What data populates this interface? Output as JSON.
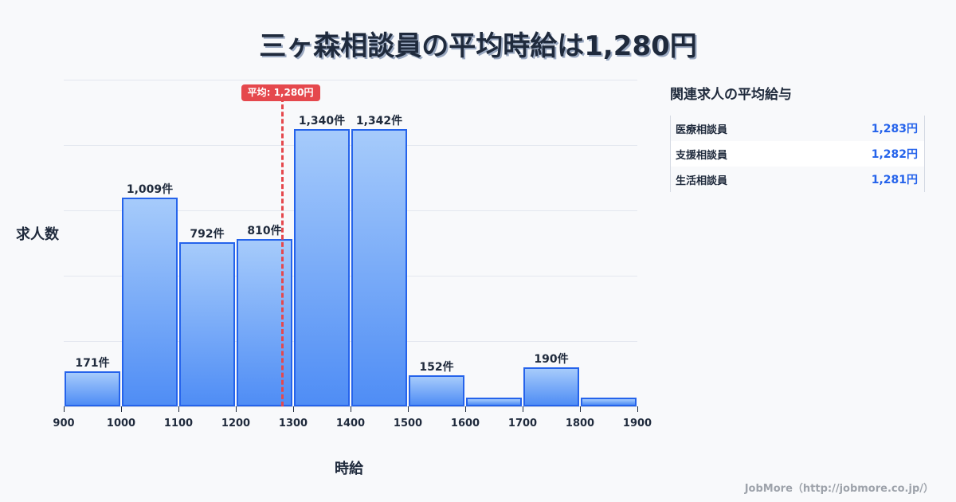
{
  "title": "三ヶ森相談員の平均時給は1,280円",
  "axes": {
    "ylabel": "求人数",
    "xlabel": "時給"
  },
  "mean": {
    "label": "平均: 1,280円",
    "value": 1280,
    "color": "#e5484d"
  },
  "side_panel": {
    "title": "関連求人の平均給与",
    "rows": [
      {
        "name": "医療相談員",
        "value": "1,283円"
      },
      {
        "name": "支援相談員",
        "value": "1,282円"
      },
      {
        "name": "生活相談員",
        "value": "1,281円"
      }
    ]
  },
  "footer": "JobMore（http://jobmore.co.jp/）",
  "colors": {
    "bar_border": "#2563eb",
    "bar_top": "#a6cbfb",
    "bar_bottom": "#4f8df5",
    "accent_value": "#2563eb"
  },
  "chart_data": {
    "type": "bar",
    "title": "三ヶ森相談員の平均時給は1,280円",
    "xlabel": "時給",
    "ylabel": "求人数",
    "bin_edges": [
      900,
      1000,
      1100,
      1200,
      1300,
      1400,
      1500,
      1600,
      1700,
      1800,
      1900
    ],
    "categories": [
      "900-1000",
      "1000-1100",
      "1100-1200",
      "1200-1300",
      "1300-1400",
      "1400-1500",
      "1500-1600",
      "1600-1700",
      "1700-1800",
      "1800-1900"
    ],
    "values": [
      171,
      1009,
      792,
      810,
      1340,
      1342,
      152,
      42,
      190,
      42
    ],
    "labels": [
      "171件",
      "1,009件",
      "792件",
      "810件",
      "1,340件",
      "1,342件",
      "152件",
      "",
      "190件",
      ""
    ],
    "x_ticks": [
      "900",
      "1000",
      "1100",
      "1200",
      "1300",
      "1400",
      "1500",
      "1600",
      "1700",
      "1800",
      "1900"
    ],
    "mean_line": 1280,
    "mean_annotation": "平均: 1,280円",
    "ylim": [
      0,
      1580
    ],
    "grid": true,
    "legend": null
  }
}
